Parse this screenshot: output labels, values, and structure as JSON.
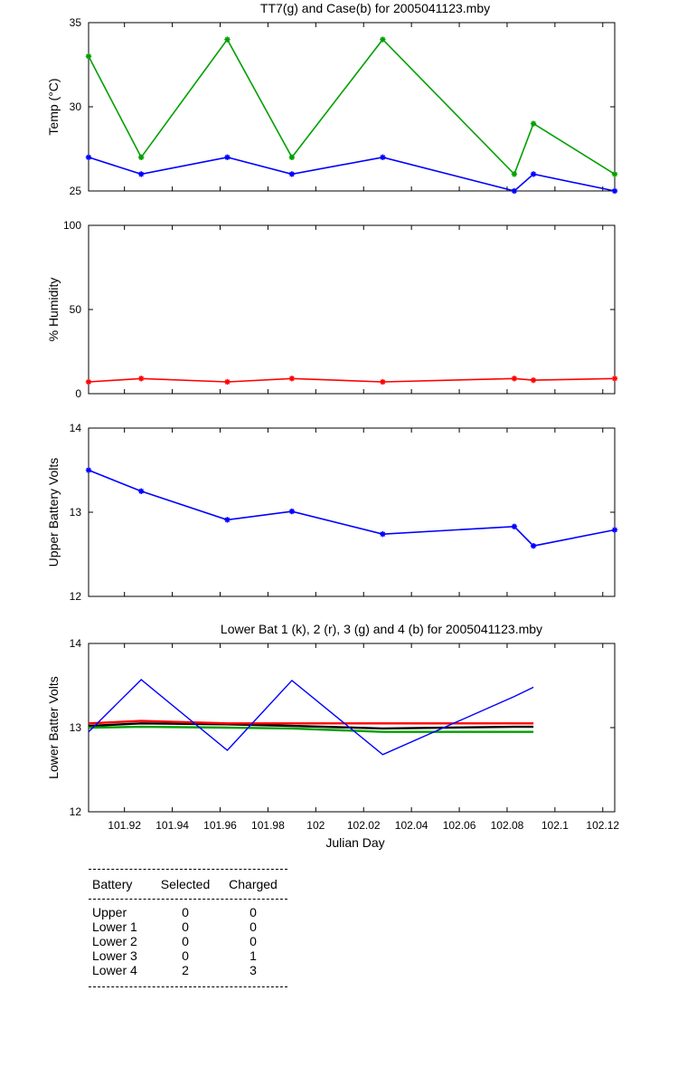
{
  "chart_data": [
    {
      "type": "line",
      "title": "TT7(g) and Case(b) for 2005041123.mby",
      "xlabel": "",
      "ylabel": "Temp  (°C)",
      "xlim": [
        101.905,
        102.125
      ],
      "ylim": [
        25,
        35
      ],
      "yticks": [
        "25",
        "30",
        "35"
      ],
      "grid": false,
      "series": [
        {
          "color": "#00a000",
          "marker": "*",
          "x": [
            101.905,
            101.927,
            101.963,
            101.99,
            102.028,
            102.083,
            102.091,
            102.125
          ],
          "y": [
            33,
            27,
            34,
            27,
            34,
            26,
            29,
            26
          ]
        },
        {
          "color": "#0000ff",
          "marker": "*",
          "x": [
            101.905,
            101.927,
            101.963,
            101.99,
            102.028,
            102.083,
            102.091,
            102.125
          ],
          "y": [
            27,
            26,
            27,
            26,
            27,
            25,
            26,
            25
          ]
        }
      ]
    },
    {
      "type": "line",
      "title": "",
      "xlabel": "",
      "ylabel": "% Humidity",
      "xlim": [
        101.905,
        102.125
      ],
      "ylim": [
        0,
        100
      ],
      "yticks": [
        "0",
        "50",
        "100"
      ],
      "grid": false,
      "series": [
        {
          "color": "#ff0000",
          "marker": "*",
          "x": [
            101.905,
            101.927,
            101.963,
            101.99,
            102.028,
            102.083,
            102.091,
            102.125
          ],
          "y": [
            7,
            9,
            7,
            9,
            7,
            9,
            8,
            9
          ]
        }
      ]
    },
    {
      "type": "line",
      "title": "",
      "xlabel": "",
      "ylabel": "Upper Battery Volts",
      "xlim": [
        101.905,
        102.125
      ],
      "ylim": [
        12,
        14
      ],
      "yticks": [
        "12",
        "13",
        "14"
      ],
      "grid": false,
      "series": [
        {
          "color": "#0000ff",
          "marker": "*",
          "x": [
            101.905,
            101.927,
            101.963,
            101.99,
            102.028,
            102.083,
            102.091,
            102.125
          ],
          "y": [
            13.5,
            13.25,
            12.91,
            13.01,
            12.74,
            12.83,
            12.6,
            12.79
          ]
        }
      ]
    },
    {
      "type": "line",
      "title": "Lower Bat 1 (k), 2 (r), 3 (g) and 4 (b) for 2005041123.mby",
      "xlabel": "Julian Day",
      "ylabel": "Lower Batter Volts",
      "xlim": [
        101.905,
        102.125
      ],
      "ylim": [
        12,
        14
      ],
      "yticks": [
        "12",
        "13",
        "14"
      ],
      "xticks": [
        "101.92",
        "101.94",
        "101.96",
        "101.98",
        "102",
        "102.02",
        "102.04",
        "102.06",
        "102.08",
        "102.1",
        "102.12"
      ],
      "grid": false,
      "series": [
        {
          "color": "#000000",
          "marker": "",
          "x": [
            101.905,
            101.927,
            101.963,
            101.99,
            102.028,
            102.083,
            102.091
          ],
          "y": [
            13.02,
            13.05,
            13.04,
            13.02,
            12.99,
            13.01,
            13.01
          ]
        },
        {
          "color": "#ff0000",
          "marker": "",
          "x": [
            101.905,
            101.927,
            101.963,
            101.99,
            102.028,
            102.083,
            102.091
          ],
          "y": [
            13.05,
            13.08,
            13.05,
            13.05,
            13.05,
            13.05,
            13.05
          ]
        },
        {
          "color": "#00a000",
          "marker": "",
          "x": [
            101.905,
            101.927,
            101.963,
            101.99,
            102.028,
            102.083,
            102.091
          ],
          "y": [
            13.0,
            13.01,
            13.0,
            12.99,
            12.95,
            12.95,
            12.95
          ]
        },
        {
          "color": "#0000ff",
          "marker": "",
          "x": [
            101.905,
            101.927,
            101.963,
            101.99,
            102.028,
            102.083,
            102.091
          ],
          "y": [
            12.95,
            13.57,
            12.73,
            13.56,
            12.68,
            13.37,
            13.48
          ]
        }
      ]
    }
  ],
  "battery_table": {
    "headers": [
      "Battery",
      "Selected",
      "Charged"
    ],
    "rows": [
      [
        "Upper",
        "0",
        "0"
      ],
      [
        "Lower 1",
        "0",
        "0"
      ],
      [
        "Lower 2",
        "0",
        "0"
      ],
      [
        "Lower 3",
        "0",
        "1"
      ],
      [
        "Lower 4",
        "2",
        "3"
      ]
    ]
  }
}
